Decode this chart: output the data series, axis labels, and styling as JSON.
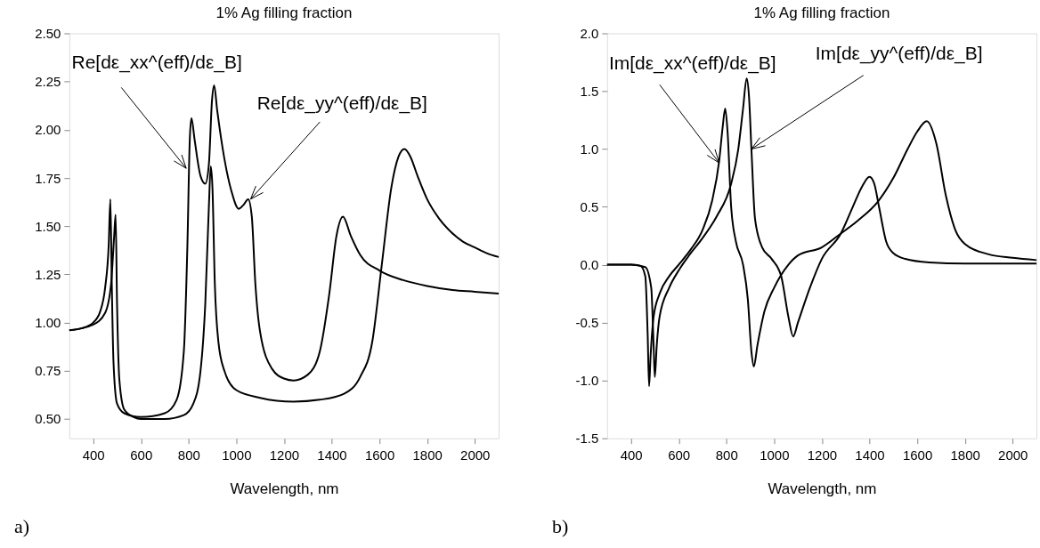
{
  "chart_data": [
    {
      "type": "line",
      "title": "1% Ag filling fraction",
      "xlabel": "Wavelength, nm",
      "xlim": [
        300,
        2100
      ],
      "xticks": [
        400,
        600,
        800,
        1000,
        1200,
        1400,
        1600,
        1800,
        2000
      ],
      "ylim": [
        0.4,
        2.5
      ],
      "yticks": [
        {
          "value": 0.5,
          "label": "0.50"
        },
        {
          "value": 0.75,
          "label": "0.75"
        },
        {
          "value": 1.0,
          "label": "1.00"
        },
        {
          "value": 1.25,
          "label": "1.25"
        },
        {
          "value": 1.5,
          "label": "1.50"
        },
        {
          "value": 1.75,
          "label": "1.75"
        },
        {
          "value": 2.0,
          "label": "2.00"
        },
        {
          "value": 2.25,
          "label": "2.25"
        },
        {
          "value": 2.5,
          "label": "2.50"
        }
      ],
      "grid": false,
      "legend": false,
      "marker": "none",
      "line_style": "solid",
      "series": [
        {
          "color": "#000000",
          "x": [
            300,
            350,
            400,
            430,
            450,
            465,
            472,
            478,
            485,
            500,
            530,
            600,
            700,
            750,
            780,
            795,
            805,
            812,
            825,
            850,
            870,
            885,
            898,
            907,
            920,
            950,
            980,
            1010,
            1030,
            1050,
            1065,
            1080,
            1100,
            1150,
            1200,
            1240,
            1300,
            1350,
            1390,
            1420,
            1447,
            1480,
            1520,
            1600,
            1700,
            1800,
            1900,
            2000,
            2100
          ],
          "values": [
            0.96,
            0.97,
            1.0,
            1.06,
            1.18,
            1.4,
            1.64,
            1.2,
            0.8,
            0.58,
            0.53,
            0.51,
            0.53,
            0.6,
            0.85,
            1.4,
            1.95,
            2.06,
            1.95,
            1.76,
            1.72,
            1.82,
            2.15,
            2.23,
            2.1,
            1.85,
            1.68,
            1.59,
            1.61,
            1.64,
            1.55,
            1.2,
            0.95,
            0.76,
            0.71,
            0.7,
            0.73,
            0.85,
            1.15,
            1.45,
            1.55,
            1.45,
            1.35,
            1.27,
            1.22,
            1.19,
            1.17,
            1.16,
            1.15
          ]
        },
        {
          "color": "#000000",
          "x": [
            300,
            400,
            450,
            475,
            488,
            494,
            500,
            510,
            530,
            570,
            600,
            700,
            780,
            820,
            850,
            870,
            885,
            893,
            900,
            910,
            925,
            950,
            1000,
            1100,
            1240,
            1350,
            1450,
            1520,
            1570,
            1610,
            1650,
            1680,
            1705,
            1730,
            1760,
            1800,
            1850,
            1900,
            1950,
            2000,
            2050,
            2100
          ],
          "values": [
            0.96,
            0.99,
            1.05,
            1.2,
            1.45,
            1.56,
            1.1,
            0.7,
            0.55,
            0.51,
            0.5,
            0.5,
            0.52,
            0.58,
            0.75,
            1.1,
            1.6,
            1.81,
            1.7,
            1.2,
            0.9,
            0.75,
            0.65,
            0.61,
            0.59,
            0.6,
            0.63,
            0.72,
            0.9,
            1.3,
            1.7,
            1.86,
            1.9,
            1.86,
            1.76,
            1.64,
            1.54,
            1.47,
            1.42,
            1.39,
            1.36,
            1.34
          ]
        }
      ],
      "annotations": [
        {
          "text": "Re[dε_xx^(eff)/dε_B]",
          "x": 790,
          "y": 1.8
        },
        {
          "text": "Re[dε_yy^(eff)/dε_B]",
          "x": 1060,
          "y": 1.64
        },
        "a)"
      ]
    },
    {
      "type": "line",
      "title": "1% Ag filling fraction",
      "xlabel": "Wavelength, nm",
      "xlim": [
        300,
        2100
      ],
      "xticks": [
        400,
        600,
        800,
        1000,
        1200,
        1400,
        1600,
        1800,
        2000
      ],
      "ylim": [
        -1.5,
        2.0
      ],
      "yticks": [
        {
          "value": -1.5,
          "label": "-1.5"
        },
        {
          "value": -1.0,
          "label": "-1.0"
        },
        {
          "value": -0.5,
          "label": "-0.5"
        },
        {
          "value": 0.0,
          "label": "0.0"
        },
        {
          "value": 0.5,
          "label": "0.5"
        },
        {
          "value": 1.0,
          "label": "1.0"
        },
        {
          "value": 1.5,
          "label": "1.5"
        },
        {
          "value": 2.0,
          "label": "2.0"
        }
      ],
      "grid": false,
      "legend": false,
      "marker": "none",
      "line_style": "solid",
      "series": [
        {
          "color": "#000000",
          "x": [
            300,
            400,
            440,
            460,
            470,
            476,
            482,
            495,
            520,
            560,
            600,
            650,
            700,
            740,
            770,
            785,
            795,
            805,
            820,
            840,
            870,
            890,
            905,
            915,
            930,
            960,
            1000,
            1060,
            1100,
            1200,
            1280,
            1350,
            1437,
            1500,
            1560,
            1600,
            1640,
            1680,
            1720,
            1760,
            1800,
            1900,
            2000,
            2100
          ],
          "values": [
            0,
            0,
            -0.01,
            -0.1,
            -0.6,
            -1.05,
            -0.8,
            -0.45,
            -0.25,
            -0.1,
            0.0,
            0.13,
            0.3,
            0.55,
            0.9,
            1.2,
            1.35,
            1.15,
            0.5,
            0.2,
            0.0,
            -0.3,
            -0.75,
            -0.88,
            -0.7,
            -0.4,
            -0.2,
            0.0,
            0.08,
            0.15,
            0.27,
            0.38,
            0.55,
            0.75,
            1.0,
            1.15,
            1.24,
            1.05,
            0.6,
            0.3,
            0.18,
            0.09,
            0.06,
            0.04
          ]
        },
        {
          "color": "#000000",
          "x": [
            300,
            400,
            460,
            485,
            495,
            500,
            508,
            520,
            560,
            600,
            640,
            700,
            760,
            820,
            850,
            870,
            885,
            895,
            905,
            920,
            950,
            990,
            1030,
            1060,
            1080,
            1100,
            1150,
            1200,
            1280,
            1330,
            1370,
            1400,
            1420,
            1440,
            1470,
            1500,
            1550,
            1650,
            1800,
            2000,
            2100
          ],
          "values": [
            0,
            0,
            -0.02,
            -0.2,
            -0.7,
            -0.97,
            -0.7,
            -0.45,
            -0.2,
            -0.05,
            0.07,
            0.23,
            0.42,
            0.7,
            1.0,
            1.35,
            1.61,
            1.45,
            1.0,
            0.4,
            0.15,
            0.05,
            -0.1,
            -0.45,
            -0.62,
            -0.5,
            -0.2,
            0.05,
            0.27,
            0.5,
            0.68,
            0.76,
            0.7,
            0.5,
            0.2,
            0.1,
            0.05,
            0.02,
            0.01,
            0.01,
            0.01
          ]
        }
      ],
      "annotations": [
        {
          "text": "Im[dε_xx^(eff)/dε_B]",
          "x": 770,
          "y": 0.88
        },
        {
          "text": "Im[dε_yy^(eff)/dε_B]",
          "x": 905,
          "y": 1.0
        },
        "b)"
      ]
    }
  ]
}
